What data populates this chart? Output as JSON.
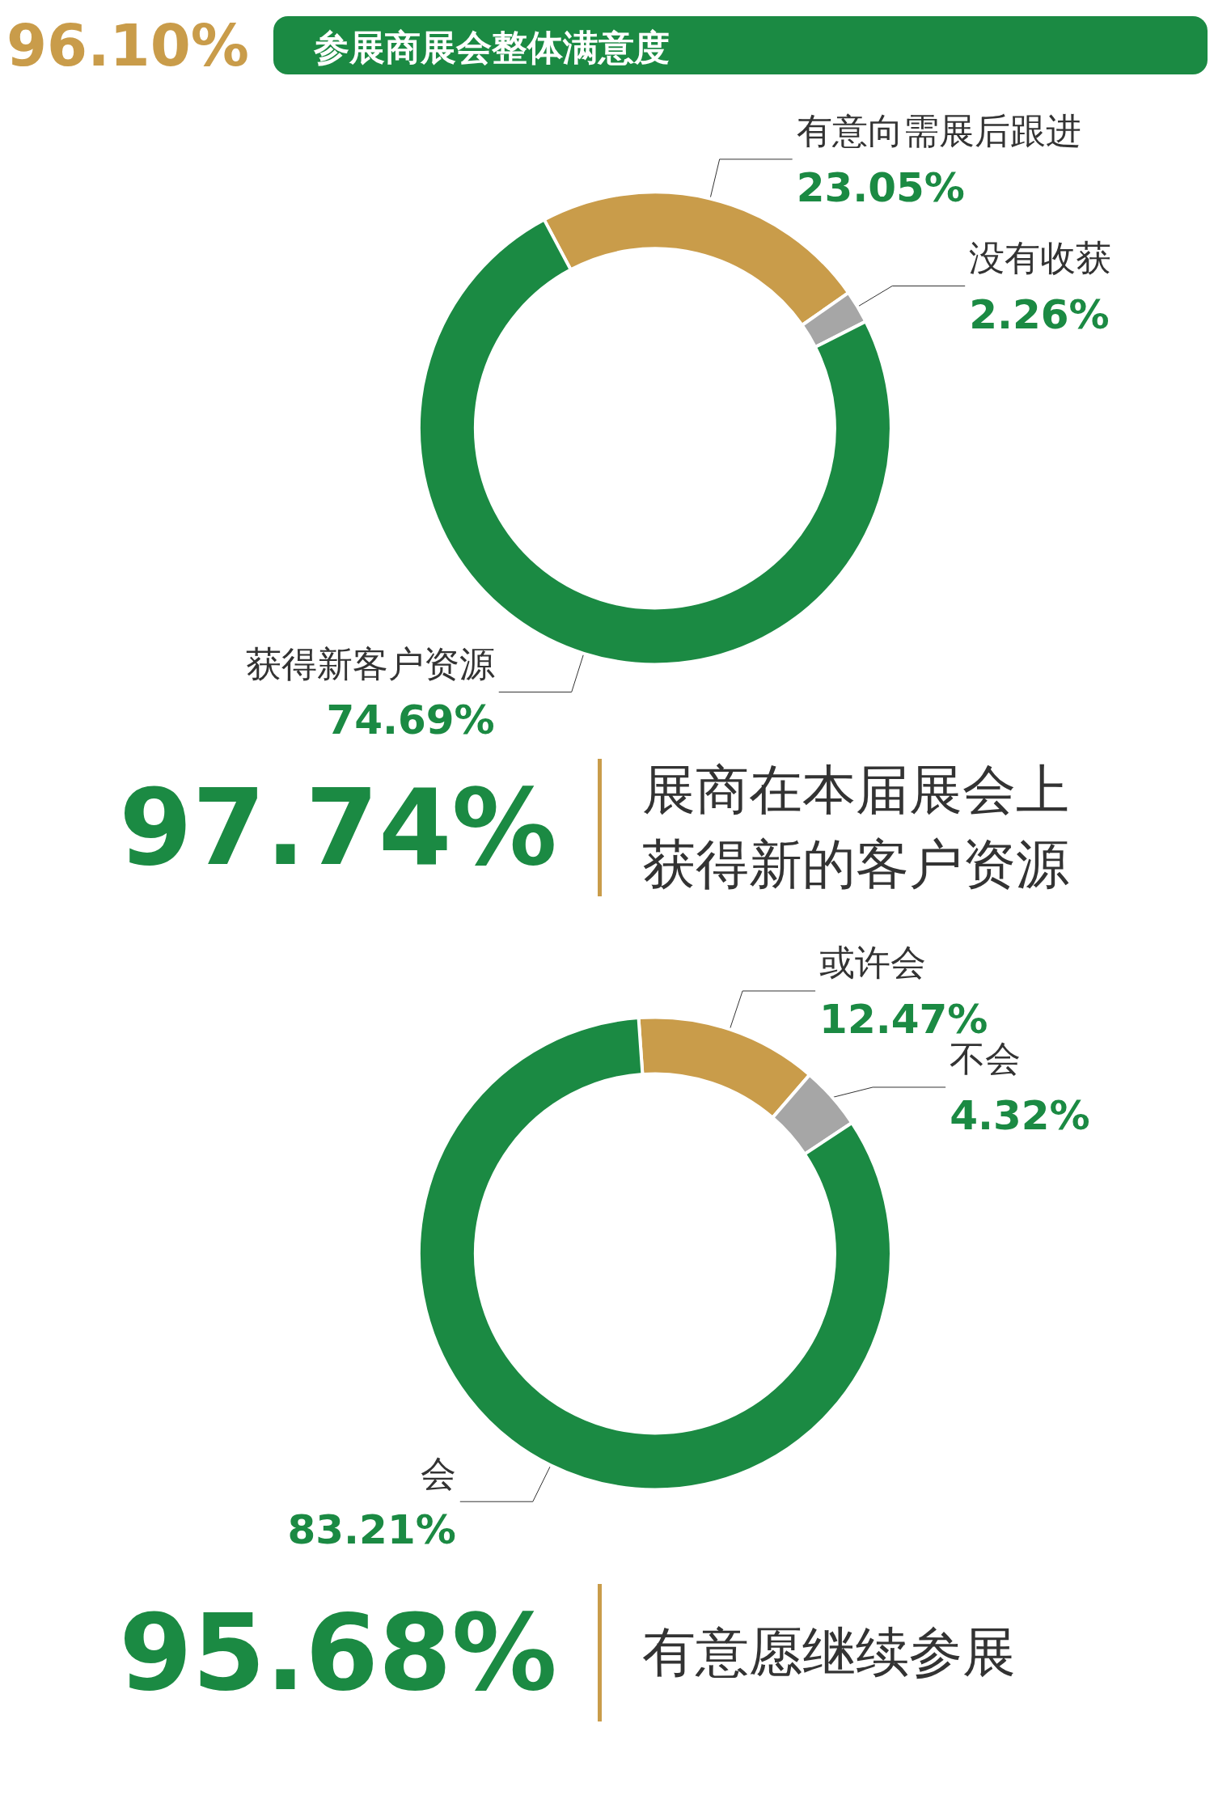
{
  "chart_data": [
    {
      "type": "other",
      "title": "参展商展会整体满意度",
      "annotations": [
        "96.10%"
      ]
    },
    {
      "type": "donut",
      "categories": [
        "有意向需展后跟进",
        "没有收获",
        "获得新客户资源"
      ],
      "values": [
        23.05,
        2.26,
        74.69
      ],
      "colors": [
        "#c99c4a",
        "#a6a6a6",
        "#1b8a43"
      ],
      "value_labels": [
        "23.05%",
        "2.26%",
        "74.69%"
      ],
      "legend": false,
      "annotations": [
        "97.74%",
        "展商在本届展会上获得新的客户资源"
      ]
    },
    {
      "type": "donut",
      "categories": [
        "或许会",
        "不会",
        "会"
      ],
      "values": [
        12.47,
        4.32,
        83.21
      ],
      "colors": [
        "#c99c4a",
        "#a6a6a6",
        "#1b8a43"
      ],
      "value_labels": [
        "12.47%",
        "4.32%",
        "83.21%"
      ],
      "legend": false,
      "annotations": [
        "95.68%",
        "有意愿继续参展"
      ]
    }
  ]
}
